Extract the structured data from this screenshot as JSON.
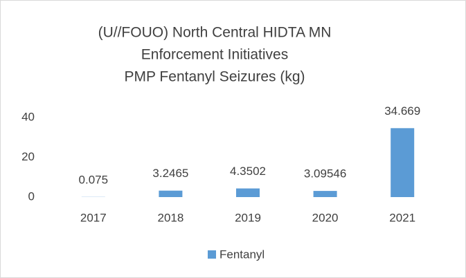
{
  "chart_data": {
    "type": "bar",
    "title": [
      "(U//FOUO) North Central HIDTA MN",
      "Enforcement Initiatives",
      "PMP Fentanyl Seizures (kg)"
    ],
    "categories": [
      "2017",
      "2018",
      "2019",
      "2020",
      "2021"
    ],
    "series": [
      {
        "name": "Fentanyl",
        "color": "#5b9bd5",
        "values": [
          0.075,
          3.2465,
          4.3502,
          3.09546,
          34.669
        ]
      }
    ],
    "ylim": [
      0,
      40
    ],
    "yticks": [
      0,
      20,
      40
    ],
    "grid": false,
    "legend": "bottom"
  }
}
